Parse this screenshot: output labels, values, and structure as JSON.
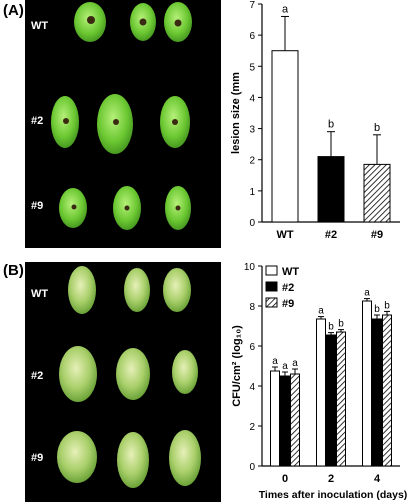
{
  "panels": [
    {
      "label": "(A)",
      "row_labels": [
        "WT",
        "#2",
        "#9"
      ]
    },
    {
      "label": "(B)",
      "row_labels": [
        "WT",
        "#2",
        "#9"
      ]
    }
  ],
  "chart_data": [
    {
      "type": "bar",
      "categories": [
        "WT",
        "#2",
        "#9"
      ],
      "values": [
        5.5,
        2.1,
        1.85
      ],
      "errors": [
        1.1,
        0.8,
        0.95
      ],
      "letters": [
        "a",
        "b",
        "b"
      ],
      "fills": [
        "white",
        "black",
        "hatched"
      ],
      "ylabel": "lesion size (mm",
      "ylim": [
        0,
        7
      ],
      "yticks": [
        "0",
        "1",
        "2",
        "3",
        "4",
        "5",
        "6",
        "7"
      ]
    },
    {
      "type": "bar",
      "categories": [
        "0",
        "2",
        "4"
      ],
      "xlabel": "Times after inoculation (days)",
      "ylabel": "CFU/cm² (log₁₀)",
      "ylim": [
        0,
        10
      ],
      "yticks": [
        "0",
        "2",
        "4",
        "6",
        "8",
        "10"
      ],
      "legend_position": "top-left",
      "series": [
        {
          "name": "WT",
          "fill": "white",
          "values": [
            4.75,
            7.35,
            8.25
          ],
          "errors": [
            0.2,
            0.12,
            0.12
          ],
          "letters": [
            "a",
            "a",
            "a"
          ]
        },
        {
          "name": "#2",
          "fill": "black",
          "values": [
            4.5,
            6.55,
            7.35
          ],
          "errors": [
            0.2,
            0.12,
            0.2
          ],
          "letters": [
            "a",
            "b",
            "b"
          ]
        },
        {
          "name": "#9",
          "fill": "hatched",
          "values": [
            4.6,
            6.7,
            7.55
          ],
          "errors": [
            0.25,
            0.12,
            0.18
          ],
          "letters": [
            "a",
            "b",
            "b"
          ]
        }
      ]
    }
  ]
}
